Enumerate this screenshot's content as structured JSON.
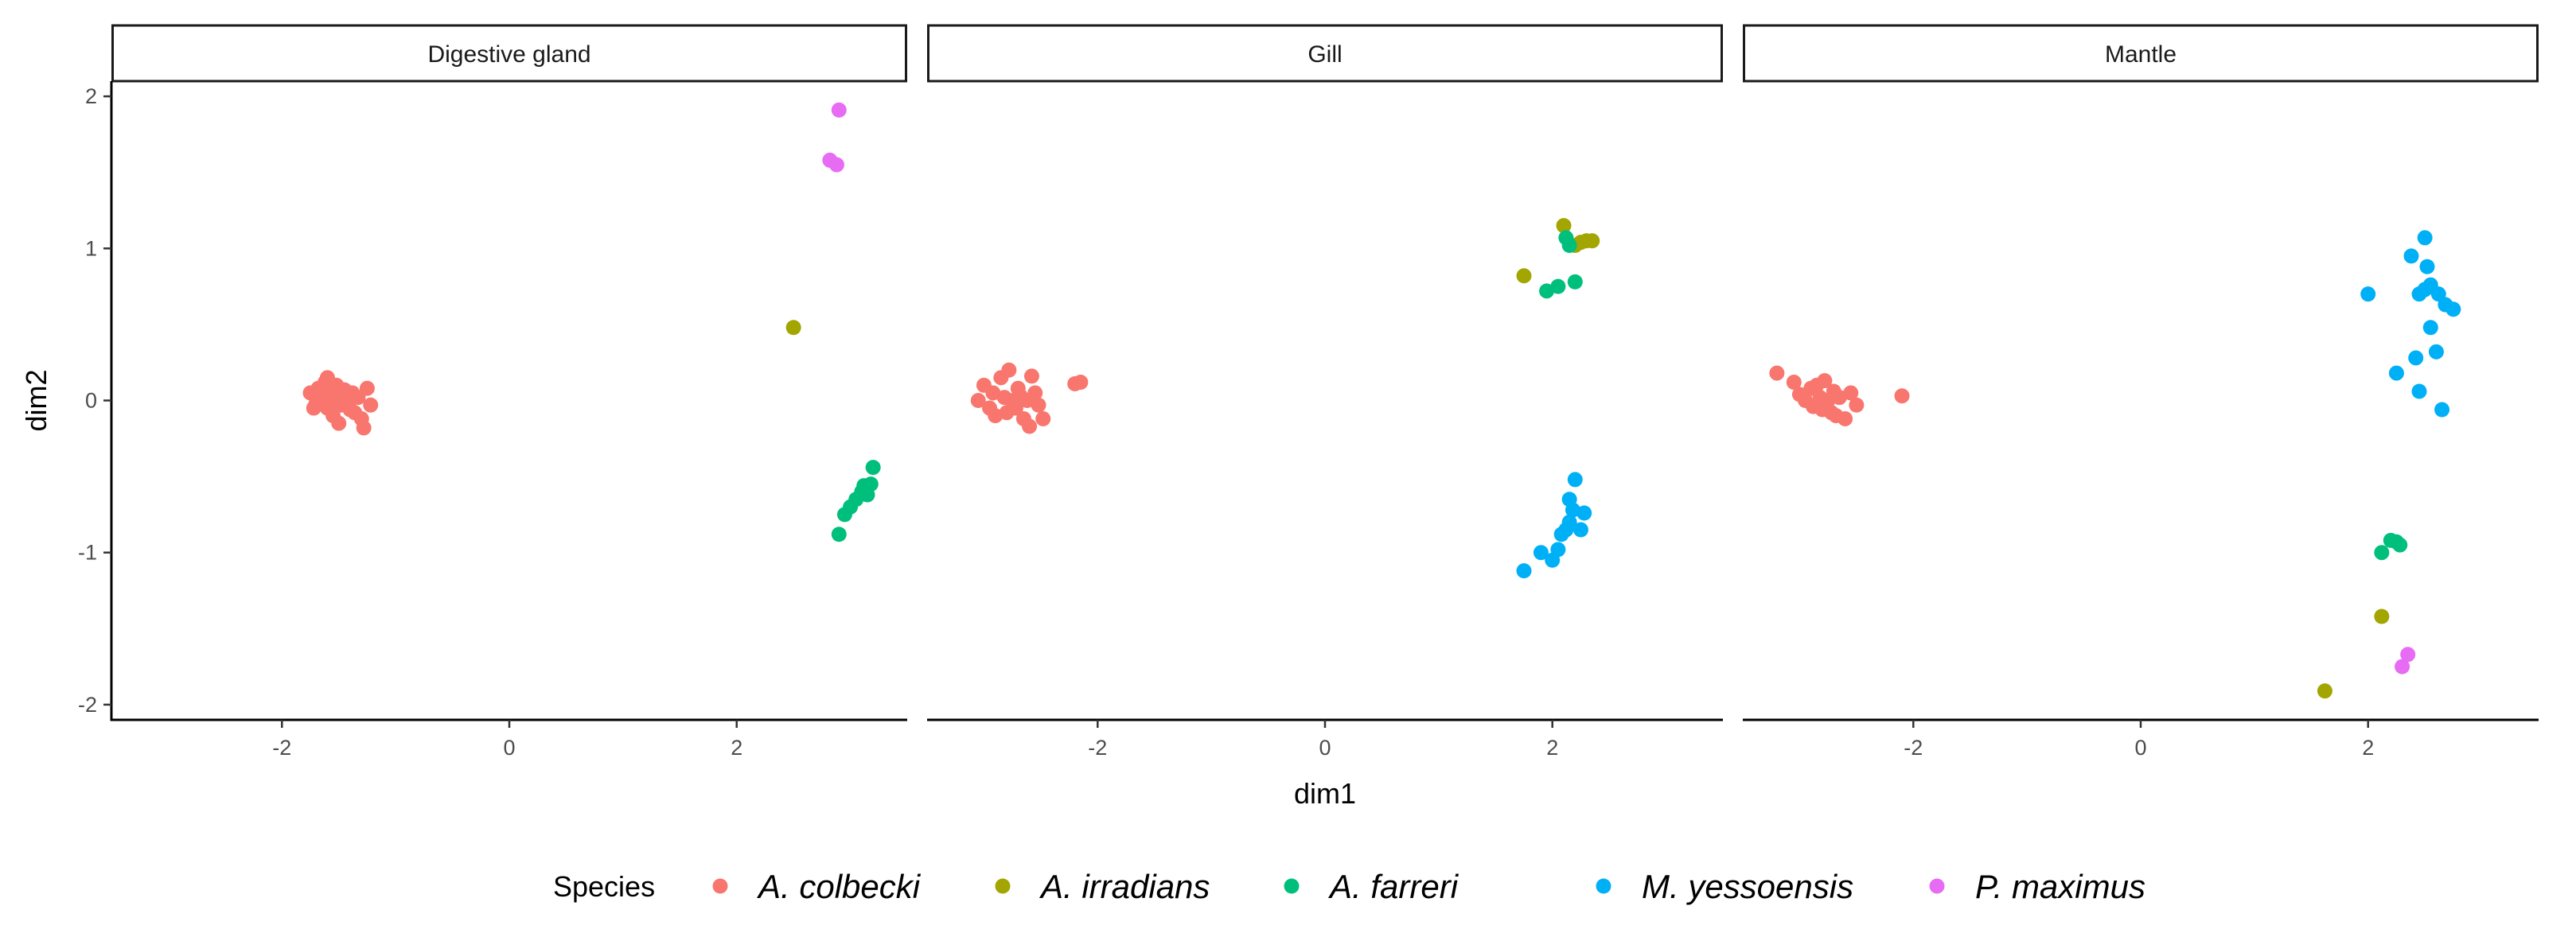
{
  "chart_data": {
    "type": "scatter",
    "xlabel": "dim1",
    "ylabel": "dim2",
    "xlim": [
      -3.5,
      3.5
    ],
    "ylim": [
      -2.1,
      2.1
    ],
    "x_ticks": [
      -2,
      0,
      2
    ],
    "y_ticks": [
      2,
      1,
      0,
      -1,
      -2
    ],
    "x_tick_labels": [
      "-2",
      "0",
      "2"
    ],
    "y_tick_labels": [
      "2",
      "1",
      "0",
      "-1",
      "-2"
    ],
    "legend": {
      "title": "Species",
      "position": "bottom",
      "entries": [
        {
          "name": "A. colbecki",
          "color": "#F8766D"
        },
        {
          "name": "A. irradians",
          "color": "#A3A500"
        },
        {
          "name": "A. farreri",
          "color": "#00BF7D"
        },
        {
          "name": "M. yessoensis",
          "color": "#00B0F6"
        },
        {
          "name": "P. maximus",
          "color": "#E76BF3"
        }
      ]
    },
    "panels": [
      {
        "title": "Digestive gland",
        "series": [
          {
            "name": "A. colbecki",
            "points": [
              [
                -1.75,
                0.05
              ],
              [
                -1.7,
                -0.02
              ],
              [
                -1.68,
                0.08
              ],
              [
                -1.65,
                0.0
              ],
              [
                -1.62,
                0.12
              ],
              [
                -1.6,
                -0.05
              ],
              [
                -1.58,
                0.06
              ],
              [
                -1.56,
                0.02
              ],
              [
                -1.55,
                -0.1
              ],
              [
                -1.52,
                0.1
              ],
              [
                -1.5,
                0.04
              ],
              [
                -1.5,
                -0.15
              ],
              [
                -1.48,
                -0.03
              ],
              [
                -1.45,
                0.07
              ],
              [
                -1.42,
                0.0
              ],
              [
                -1.4,
                -0.06
              ],
              [
                -1.38,
                0.05
              ],
              [
                -1.36,
                -0.08
              ],
              [
                -1.33,
                0.02
              ],
              [
                -1.3,
                -0.12
              ],
              [
                -1.28,
                -0.18
              ],
              [
                -1.25,
                0.08
              ],
              [
                -1.22,
                -0.03
              ],
              [
                -1.6,
                0.15
              ],
              [
                -1.72,
                -0.05
              ]
            ]
          },
          {
            "name": "A. irradians",
            "points": [
              [
                2.5,
                0.48
              ]
            ]
          },
          {
            "name": "A. farreri",
            "points": [
              [
                2.9,
                -0.88
              ],
              [
                2.95,
                -0.75
              ],
              [
                3.0,
                -0.7
              ],
              [
                3.05,
                -0.65
              ],
              [
                3.1,
                -0.6
              ],
              [
                3.12,
                -0.56
              ],
              [
                3.15,
                -0.62
              ],
              [
                3.18,
                -0.55
              ],
              [
                3.2,
                -0.44
              ]
            ]
          },
          {
            "name": "M. yessoensis",
            "points": []
          },
          {
            "name": "P. maximus",
            "points": [
              [
                2.82,
                1.58
              ],
              [
                2.88,
                1.55
              ],
              [
                2.9,
                1.91
              ]
            ]
          }
        ]
      },
      {
        "title": "Gill",
        "series": [
          {
            "name": "A. colbecki",
            "points": [
              [
                -3.05,
                0.0
              ],
              [
                -3.0,
                0.1
              ],
              [
                -2.95,
                -0.05
              ],
              [
                -2.92,
                0.05
              ],
              [
                -2.9,
                -0.1
              ],
              [
                -2.85,
                0.15
              ],
              [
                -2.82,
                0.02
              ],
              [
                -2.8,
                -0.08
              ],
              [
                -2.78,
                0.2
              ],
              [
                -2.75,
                0.0
              ],
              [
                -2.72,
                -0.05
              ],
              [
                -2.7,
                0.08
              ],
              [
                -2.68,
                0.03
              ],
              [
                -2.65,
                -0.12
              ],
              [
                -2.62,
                0.0
              ],
              [
                -2.6,
                -0.17
              ],
              [
                -2.58,
                0.16
              ],
              [
                -2.55,
                0.05
              ],
              [
                -2.52,
                -0.03
              ],
              [
                -2.48,
                -0.12
              ],
              [
                -2.2,
                0.11
              ],
              [
                -2.15,
                0.12
              ]
            ]
          },
          {
            "name": "A. irradians",
            "points": [
              [
                1.75,
                0.82
              ],
              [
                2.1,
                1.15
              ],
              [
                2.2,
                1.02
              ],
              [
                2.25,
                1.04
              ],
              [
                2.3,
                1.05
              ],
              [
                2.35,
                1.05
              ]
            ]
          },
          {
            "name": "A. farreri",
            "points": [
              [
                1.95,
                0.72
              ],
              [
                2.05,
                0.75
              ],
              [
                2.12,
                1.07
              ],
              [
                2.15,
                1.02
              ],
              [
                2.2,
                0.78
              ]
            ]
          },
          {
            "name": "M. yessoensis",
            "points": [
              [
                1.75,
                -1.12
              ],
              [
                1.9,
                -1.0
              ],
              [
                2.0,
                -1.05
              ],
              [
                2.05,
                -0.98
              ],
              [
                2.08,
                -0.88
              ],
              [
                2.12,
                -0.85
              ],
              [
                2.15,
                -0.8
              ],
              [
                2.15,
                -0.65
              ],
              [
                2.18,
                -0.72
              ],
              [
                2.2,
                -0.52
              ],
              [
                2.25,
                -0.85
              ],
              [
                2.28,
                -0.74
              ]
            ]
          },
          {
            "name": "P. maximus",
            "points": []
          }
        ]
      },
      {
        "title": "Mantle",
        "series": [
          {
            "name": "A. colbecki",
            "points": [
              [
                -3.2,
                0.18
              ],
              [
                -3.05,
                0.12
              ],
              [
                -3.0,
                0.04
              ],
              [
                -2.95,
                0.0
              ],
              [
                -2.9,
                0.08
              ],
              [
                -2.88,
                -0.04
              ],
              [
                -2.85,
                0.1
              ],
              [
                -2.82,
                0.02
              ],
              [
                -2.8,
                -0.06
              ],
              [
                -2.78,
                0.13
              ],
              [
                -2.75,
                0.0
              ],
              [
                -2.72,
                -0.08
              ],
              [
                -2.7,
                0.06
              ],
              [
                -2.68,
                -0.1
              ],
              [
                -2.65,
                0.02
              ],
              [
                -2.6,
                -0.12
              ],
              [
                -2.55,
                0.05
              ],
              [
                -2.5,
                -0.03
              ],
              [
                -2.1,
                0.03
              ]
            ]
          },
          {
            "name": "A. irradians",
            "points": [
              [
                1.62,
                -1.91
              ],
              [
                2.12,
                -1.42
              ]
            ]
          },
          {
            "name": "A. farreri",
            "points": [
              [
                2.12,
                -1.0
              ],
              [
                2.2,
                -0.92
              ],
              [
                2.25,
                -0.93
              ],
              [
                2.28,
                -0.95
              ]
            ]
          },
          {
            "name": "M. yessoensis",
            "points": [
              [
                2.0,
                0.7
              ],
              [
                2.25,
                0.18
              ],
              [
                2.38,
                0.95
              ],
              [
                2.42,
                0.28
              ],
              [
                2.45,
                0.06
              ],
              [
                2.45,
                0.7
              ],
              [
                2.5,
                1.07
              ],
              [
                2.5,
                0.73
              ],
              [
                2.52,
                0.88
              ],
              [
                2.55,
                0.48
              ],
              [
                2.55,
                0.76
              ],
              [
                2.6,
                0.32
              ],
              [
                2.62,
                0.7
              ],
              [
                2.65,
                -0.06
              ],
              [
                2.68,
                0.63
              ],
              [
                2.75,
                0.6
              ]
            ]
          },
          {
            "name": "P. maximus",
            "points": [
              [
                2.3,
                -1.75
              ],
              [
                2.35,
                -1.67
              ]
            ]
          }
        ]
      }
    ]
  }
}
